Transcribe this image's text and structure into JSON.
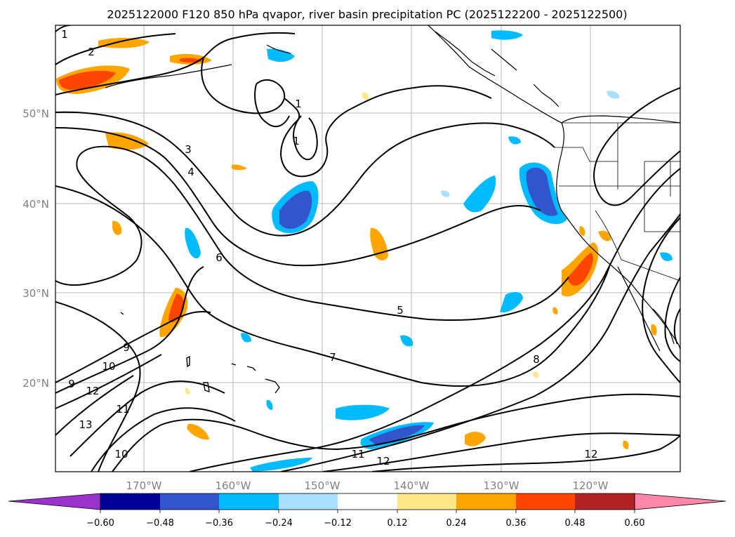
{
  "title": "2025122000 F120 850 hPa qvapor, river basin precipitation PC (2025122200 - 2025122500)",
  "lat_labels": [
    "50°N",
    "40°N",
    "30°N",
    "20°N"
  ],
  "lon_labels": [
    "170°W",
    "160°W",
    "150°W",
    "140°W",
    "130°W",
    "120°W"
  ],
  "contour_labels": [
    "1",
    "2",
    "1",
    "1",
    "3",
    "4",
    "6",
    "5",
    "7",
    "8",
    "9",
    "9",
    "10",
    "12",
    "11",
    "13",
    "10",
    "11",
    "12",
    "12"
  ],
  "colorbar": {
    "colors": [
      "#9933cc",
      "#000099",
      "#3355cc",
      "#00bbff",
      "#aae0ff",
      "#ffffff",
      "#ffe78a",
      "#ffa500",
      "#ff4500",
      "#b22222",
      "#ff88aa"
    ],
    "tick_labels": [
      "−0.60",
      "−0.48",
      "−0.36",
      "−0.24",
      "−0.12",
      "0.12",
      "0.24",
      "0.36",
      "0.48",
      "0.60"
    ]
  }
}
